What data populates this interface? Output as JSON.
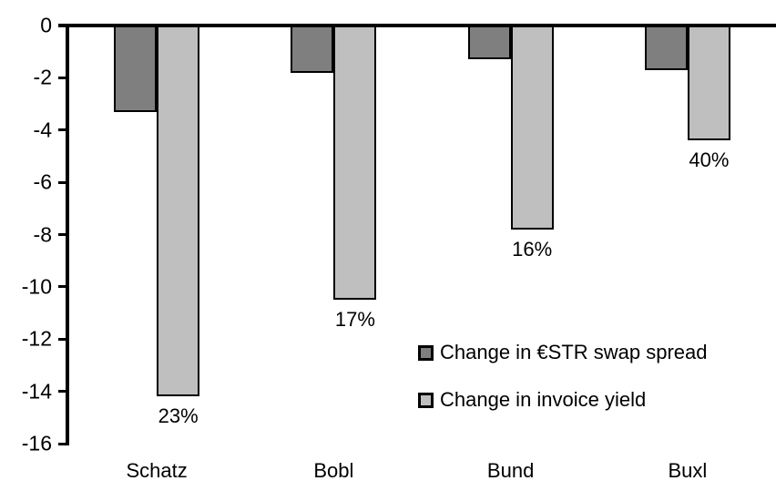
{
  "chart_data": {
    "type": "bar",
    "categories": [
      "Schatz",
      "Bobl",
      "Bund",
      "Buxl"
    ],
    "series": [
      {
        "name": "Change in €STR swap spread",
        "color": "#7f7f7f",
        "values": [
          -3.3,
          -1.8,
          -1.3,
          -1.7
        ]
      },
      {
        "name": "Change in invoice yield",
        "color": "#bfbfbf",
        "values": [
          -14.2,
          -10.5,
          -7.8,
          -4.4
        ],
        "point_labels": [
          "23%",
          "17%",
          "16%",
          "40%"
        ]
      }
    ],
    "title": "",
    "xlabel": "",
    "ylabel": "",
    "ylim": [
      -16,
      0
    ],
    "yticks": [
      0,
      -2,
      -4,
      -6,
      -8,
      -10,
      -12,
      -14,
      -16
    ],
    "grid": false,
    "legend_position": "inside-right",
    "axis_color": "#000000",
    "background_color": "#ffffff"
  }
}
